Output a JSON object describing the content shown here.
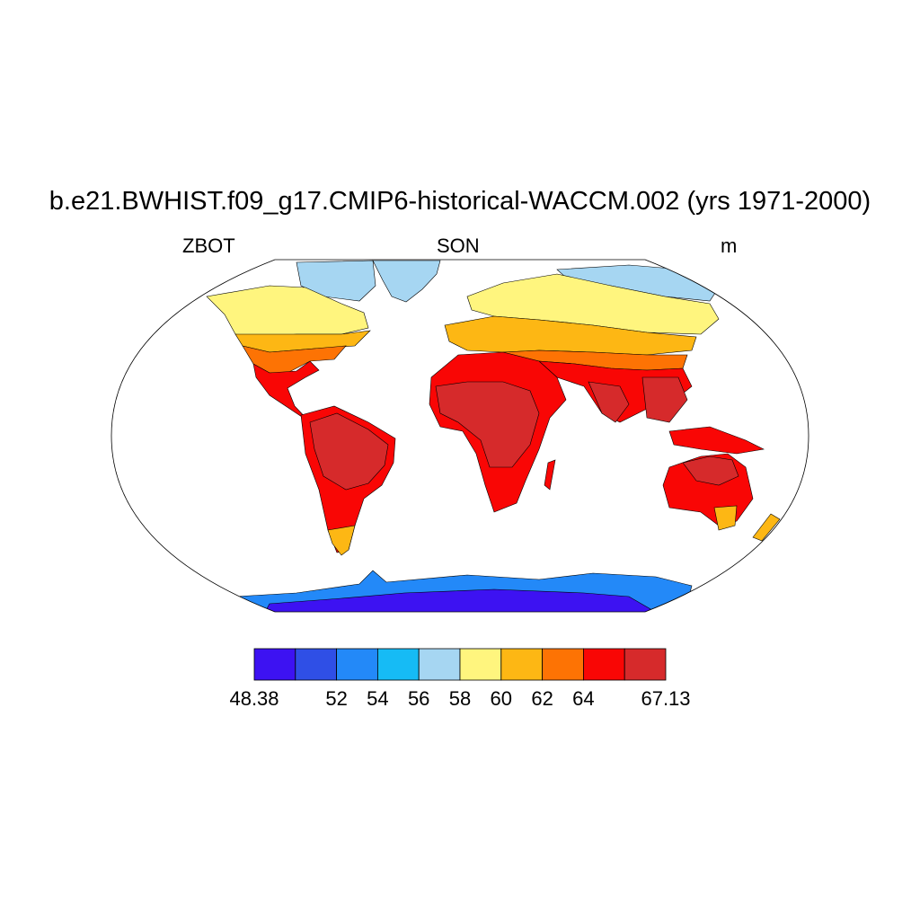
{
  "title": "b.e21.BWHIST.f09_g17.CMIP6-historical-WACCM.002 (yrs 1971-2000)",
  "left_label": "ZBOT",
  "center_label": "SON",
  "right_label": "m",
  "colorbar": {
    "colors": [
      "#3d12f2",
      "#2f4fe6",
      "#2389f8",
      "#16bbf5",
      "#a6d6f2",
      "#fff57e",
      "#fdb714",
      "#fd7304",
      "#f90605",
      "#d62a2b"
    ],
    "labels": [
      "48.38",
      "52",
      "54",
      "56",
      "58",
      "60",
      "62",
      "64",
      "67.13"
    ]
  },
  "map_colors": {
    "antarctica": "#3d12f2",
    "antarctica_coast": "#2389f8",
    "greenland": "#a6d6f2",
    "arctic": "#a6d6f2",
    "subarctic": "#fff57e",
    "midlat": "#fdb714",
    "warm": "#fd7304",
    "hot": "#f90605",
    "hottest": "#d62a2b"
  }
}
